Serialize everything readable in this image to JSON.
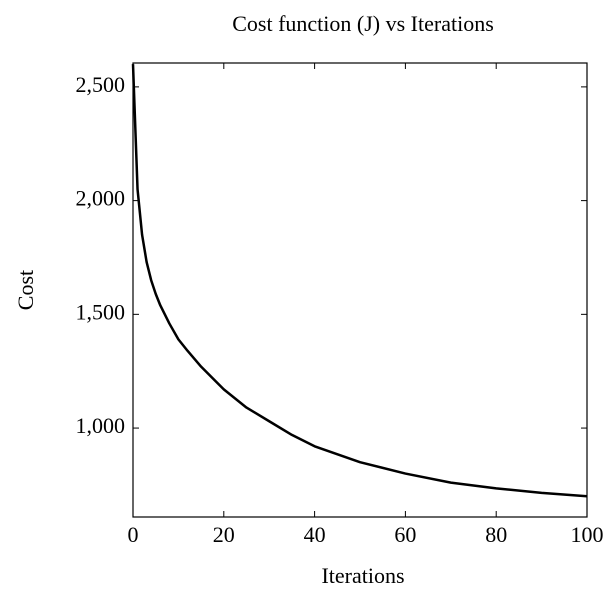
{
  "chart_data": {
    "type": "line",
    "title": "Cost function (J) vs Iterations",
    "x_label": "Iterations",
    "y_label": "Cost",
    "x": [
      0,
      1,
      2,
      3,
      4,
      5,
      6,
      8,
      10,
      12,
      15,
      20,
      25,
      30,
      35,
      40,
      50,
      60,
      70,
      80,
      90,
      100
    ],
    "series": [
      {
        "name": "Cost",
        "color": "#000000",
        "values": [
          2600,
          2050,
          1850,
          1730,
          1650,
          1590,
          1540,
          1460,
          1390,
          1340,
          1270,
          1170,
          1090,
          1030,
          970,
          920,
          850,
          800,
          760,
          735,
          715,
          700
        ]
      }
    ],
    "xlim": [
      0,
      100
    ],
    "xticks": [
      0,
      20,
      40,
      60,
      80,
      100
    ],
    "ylim": [
      609,
      2605
    ],
    "yticks": [
      {
        "value": 1000,
        "label": "1,000"
      },
      {
        "value": 1500,
        "label": "1,500"
      },
      {
        "value": 2000,
        "label": "2,000"
      },
      {
        "value": 2500,
        "label": "2,500"
      }
    ]
  }
}
